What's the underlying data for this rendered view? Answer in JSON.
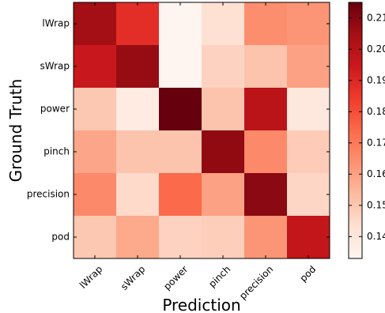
{
  "chart_data": {
    "type": "heatmap",
    "title": "",
    "xlabel": "Prediction",
    "ylabel": "Ground Truth",
    "x_categories": [
      "lWrap",
      "sWrap",
      "power",
      "pinch",
      "precision",
      "pod"
    ],
    "y_categories": [
      "lWrap",
      "sWrap",
      "power",
      "pinch",
      "precision",
      "pod"
    ],
    "values": [
      [
        0.205,
        0.188,
        0.133,
        0.143,
        0.165,
        0.163
      ],
      [
        0.195,
        0.207,
        0.133,
        0.147,
        0.151,
        0.16
      ],
      [
        0.15,
        0.138,
        0.215,
        0.151,
        0.199,
        0.14
      ],
      [
        0.159,
        0.151,
        0.151,
        0.208,
        0.166,
        0.149
      ],
      [
        0.166,
        0.145,
        0.174,
        0.16,
        0.209,
        0.146
      ],
      [
        0.15,
        0.158,
        0.147,
        0.148,
        0.163,
        0.197
      ]
    ],
    "colorbar": {
      "min": 0.133,
      "max": 0.215,
      "ticks": [
        0.14,
        0.15,
        0.16,
        0.17,
        0.18,
        0.19,
        0.2,
        0.21
      ],
      "tick_labels": [
        "0.14",
        "0.15",
        "0.16",
        "0.17",
        "0.18",
        "0.19",
        "0.20",
        "0.21"
      ]
    },
    "colormap": [
      "#fff5f0",
      "#fee0d2",
      "#fcbba1",
      "#fc9272",
      "#fb6a4a",
      "#ef3b2c",
      "#cb181d",
      "#a50f15",
      "#67000d"
    ]
  }
}
